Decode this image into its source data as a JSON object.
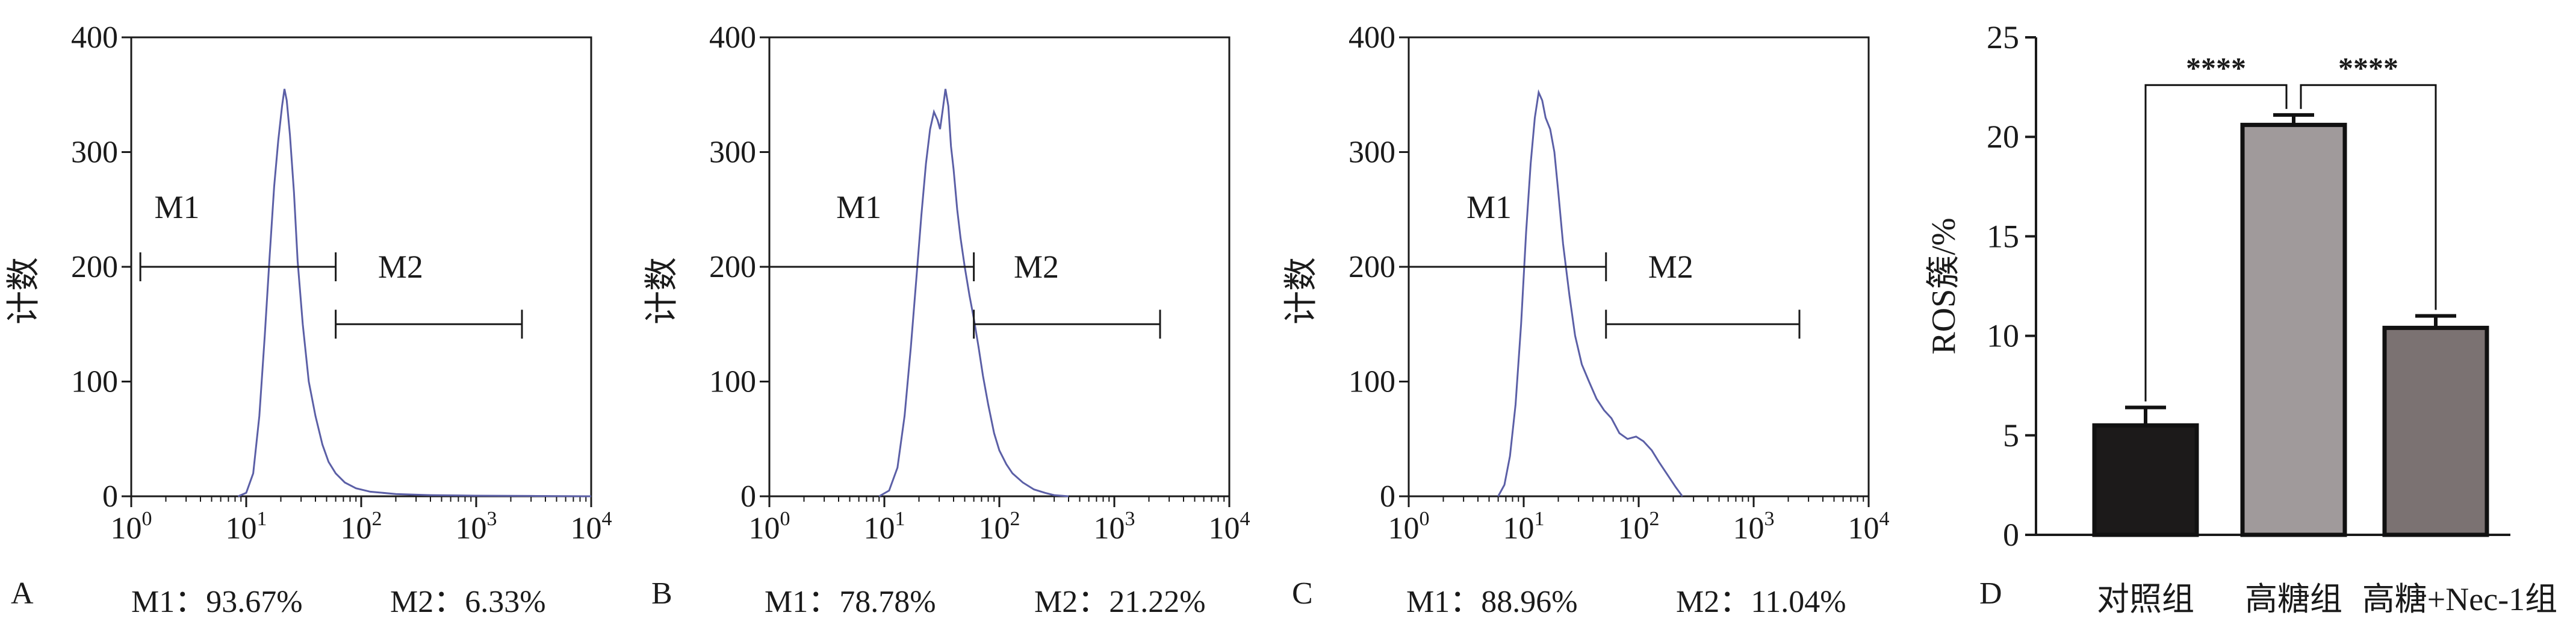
{
  "figure": {
    "panels": [
      {
        "letter": "A",
        "caption_m1": "M1：93.67%",
        "caption_m2": "M2：6.33%"
      },
      {
        "letter": "B",
        "caption_m1": "M1：78.78%",
        "caption_m2": "M2：21.22%"
      },
      {
        "letter": "C",
        "caption_m1": "M1：88.96%",
        "caption_m2": "M2：11.04%"
      },
      {
        "letter": "D"
      }
    ]
  },
  "colors": {
    "histogram_line": "#5b5fa6",
    "axis": "#1a1a1a",
    "bar_control": "#1c1a1a",
    "bar_high_glucose": "#a09a9b",
    "bar_nec1": "#7b7272"
  },
  "chart_data": [
    {
      "type": "line",
      "subtype": "flow-cytometry-histogram",
      "ylabel": "计数",
      "xscale": "log",
      "xlim": [
        1,
        10000
      ],
      "ylim": [
        0,
        400
      ],
      "x_ticks": [
        {
          "v": 1,
          "m": "10",
          "e": "0"
        },
        {
          "v": 10,
          "m": "10",
          "e": "1"
        },
        {
          "v": 100,
          "m": "10",
          "e": "2"
        },
        {
          "v": 1000,
          "m": "10",
          "e": "3"
        },
        {
          "v": 10000,
          "m": "10",
          "e": "4"
        }
      ],
      "y_ticks": [
        0,
        100,
        200,
        300,
        400
      ],
      "gates": [
        {
          "name": "M1",
          "from": 1.2,
          "to": 60,
          "y": 200,
          "label_x": 2.5,
          "label_y": 252
        },
        {
          "name": "M2",
          "from": 60,
          "to": 2500,
          "y": 150,
          "label_x": 220,
          "label_y": 200
        }
      ],
      "curve": [
        [
          8.5,
          0
        ],
        [
          10,
          3
        ],
        [
          11.5,
          20
        ],
        [
          13,
          70
        ],
        [
          14.5,
          140
        ],
        [
          16,
          210
        ],
        [
          17.5,
          270
        ],
        [
          19,
          310
        ],
        [
          20.5,
          340
        ],
        [
          21.5,
          355
        ],
        [
          22.5,
          345
        ],
        [
          24,
          315
        ],
        [
          26,
          265
        ],
        [
          28,
          205
        ],
        [
          31,
          150
        ],
        [
          35,
          100
        ],
        [
          40,
          70
        ],
        [
          46,
          45
        ],
        [
          52,
          30
        ],
        [
          60,
          20
        ],
        [
          72,
          12
        ],
        [
          90,
          7
        ],
        [
          120,
          4
        ],
        [
          200,
          2
        ],
        [
          400,
          1
        ],
        [
          1000,
          0.5
        ],
        [
          3000,
          0.3
        ],
        [
          10000,
          0
        ]
      ],
      "percent_m1": 93.67,
      "percent_m2": 6.33
    },
    {
      "type": "line",
      "subtype": "flow-cytometry-histogram",
      "ylabel": "计数",
      "xscale": "log",
      "xlim": [
        1,
        10000
      ],
      "ylim": [
        0,
        400
      ],
      "x_ticks": [
        {
          "v": 1,
          "m": "10",
          "e": "0"
        },
        {
          "v": 10,
          "m": "10",
          "e": "1"
        },
        {
          "v": 100,
          "m": "10",
          "e": "2"
        },
        {
          "v": 1000,
          "m": "10",
          "e": "3"
        },
        {
          "v": 10000,
          "m": "10",
          "e": "4"
        }
      ],
      "y_ticks": [
        0,
        100,
        200,
        300,
        400
      ],
      "gates": [
        {
          "name": "M1",
          "from": 1,
          "to": 60,
          "y": 200,
          "label_x": 6,
          "label_y": 252
        },
        {
          "name": "M2",
          "from": 60,
          "to": 2500,
          "y": 150,
          "label_x": 210,
          "label_y": 200
        }
      ],
      "curve": [
        [
          9,
          0
        ],
        [
          11,
          5
        ],
        [
          13,
          25
        ],
        [
          15,
          70
        ],
        [
          17,
          130
        ],
        [
          19,
          190
        ],
        [
          21,
          245
        ],
        [
          23,
          290
        ],
        [
          25,
          320
        ],
        [
          27,
          335
        ],
        [
          29,
          328
        ],
        [
          30.5,
          320
        ],
        [
          32,
          335
        ],
        [
          34,
          355
        ],
        [
          36,
          340
        ],
        [
          38,
          305
        ],
        [
          40,
          285
        ],
        [
          43,
          250
        ],
        [
          46,
          225
        ],
        [
          50,
          200
        ],
        [
          55,
          175
        ],
        [
          60,
          155
        ],
        [
          66,
          130
        ],
        [
          72,
          105
        ],
        [
          80,
          80
        ],
        [
          90,
          55
        ],
        [
          100,
          40
        ],
        [
          115,
          28
        ],
        [
          130,
          20
        ],
        [
          160,
          12
        ],
        [
          200,
          6
        ],
        [
          250,
          3
        ],
        [
          300,
          1
        ],
        [
          400,
          0
        ]
      ],
      "percent_m1": 78.78,
      "percent_m2": 21.22
    },
    {
      "type": "line",
      "subtype": "flow-cytometry-histogram",
      "ylabel": "计数",
      "xscale": "log",
      "xlim": [
        1,
        10000
      ],
      "ylim": [
        0,
        400
      ],
      "x_ticks": [
        {
          "v": 1,
          "m": "10",
          "e": "0"
        },
        {
          "v": 10,
          "m": "10",
          "e": "1"
        },
        {
          "v": 100,
          "m": "10",
          "e": "2"
        },
        {
          "v": 1000,
          "m": "10",
          "e": "3"
        },
        {
          "v": 10000,
          "m": "10",
          "e": "4"
        }
      ],
      "y_ticks": [
        0,
        100,
        200,
        300,
        400
      ],
      "gates": [
        {
          "name": "M1",
          "from": 1,
          "to": 52,
          "y": 200,
          "label_x": 5,
          "label_y": 252
        },
        {
          "name": "M2",
          "from": 52,
          "to": 2500,
          "y": 150,
          "label_x": 190,
          "label_y": 200
        }
      ],
      "curve": [
        [
          6,
          0
        ],
        [
          6.8,
          10
        ],
        [
          7.6,
          35
        ],
        [
          8.5,
          80
        ],
        [
          9.5,
          150
        ],
        [
          10.5,
          230
        ],
        [
          11.5,
          290
        ],
        [
          12.5,
          330
        ],
        [
          13.5,
          352
        ],
        [
          14.5,
          345
        ],
        [
          15.5,
          330
        ],
        [
          17,
          320
        ],
        [
          18.5,
          300
        ],
        [
          20,
          265
        ],
        [
          22,
          220
        ],
        [
          25,
          175
        ],
        [
          28,
          140
        ],
        [
          32,
          115
        ],
        [
          37,
          100
        ],
        [
          43,
          85
        ],
        [
          50,
          75
        ],
        [
          58,
          68
        ],
        [
          68,
          55
        ],
        [
          80,
          50
        ],
        [
          95,
          52
        ],
        [
          110,
          48
        ],
        [
          130,
          40
        ],
        [
          150,
          30
        ],
        [
          180,
          18
        ],
        [
          210,
          8
        ],
        [
          240,
          0
        ]
      ],
      "percent_m1": 88.96,
      "percent_m2": 11.04
    },
    {
      "type": "bar",
      "ylabel": "ROS簇/%",
      "ylim": [
        0,
        25
      ],
      "y_ticks": [
        0,
        5,
        10,
        15,
        20,
        25
      ],
      "categories": [
        "对照组",
        "高糖组",
        "高糖+Nec-1组"
      ],
      "values": [
        5.5,
        20.6,
        10.4
      ],
      "errors": [
        0.9,
        0.5,
        0.6
      ],
      "significance": [
        {
          "from": 0,
          "to": 1,
          "label": "****"
        },
        {
          "from": 1,
          "to": 2,
          "label": "****"
        }
      ]
    }
  ]
}
